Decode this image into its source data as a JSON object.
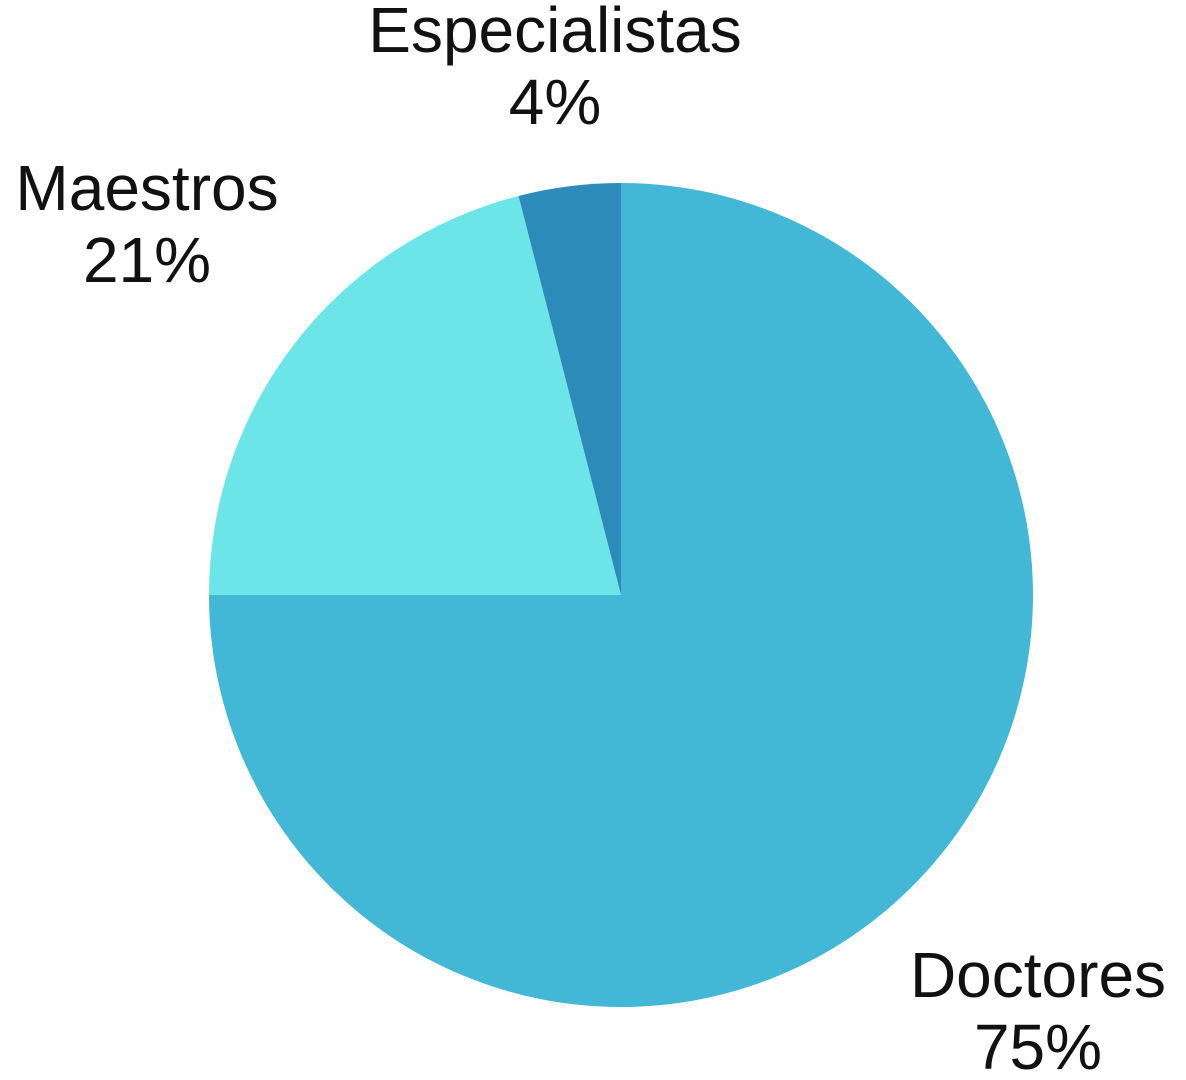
{
  "chart_data": {
    "type": "pie",
    "slices": [
      {
        "label": "Doctores",
        "value": 75,
        "value_label": "75%",
        "color": "#43b7d6"
      },
      {
        "label": "Maestros",
        "value": 21,
        "value_label": "21%",
        "color": "#6ce5e8"
      },
      {
        "label": "Especialistas",
        "value": 4,
        "value_label": "4%",
        "color": "#2d8bba"
      }
    ],
    "start_angle": "12 o'clock",
    "direction": "clockwise",
    "legend": "none",
    "labels": "outside slices"
  }
}
